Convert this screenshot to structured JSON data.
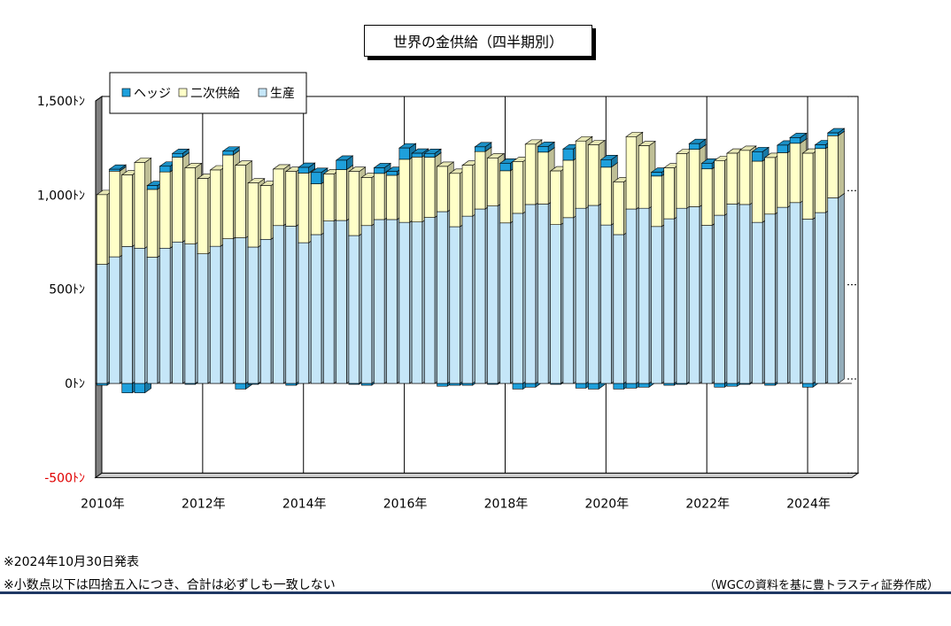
{
  "title": "世界の金供給（四半期別）",
  "notes": {
    "release": "※2024年10月30日発表",
    "rounding": "※小数点以下は四捨五入につき、合計は必ずしも一致しない",
    "source": "（WGCの資料を基に豊トラスティ証券作成）"
  },
  "colors": {
    "hedge": "#1ea0dc",
    "secondary": "#ffffc8",
    "production": "#c5e6f8"
  },
  "chart_data": {
    "type": "bar",
    "stacked": true,
    "style": "3d",
    "ylim": [
      -500,
      1500
    ],
    "y_ticks": [
      {
        "value": 1500,
        "label": "1,500ﾄﾝ"
      },
      {
        "value": 1000,
        "label": "1,000ﾄﾝ"
      },
      {
        "value": 500,
        "label": "500ﾄﾝ"
      },
      {
        "value": 0,
        "label": "0ﾄﾝ"
      },
      {
        "value": -500,
        "label": "-500ﾄﾝ"
      }
    ],
    "x_tick_labels": [
      "2010年",
      "2012年",
      "2014年",
      "2016年",
      "2018年",
      "2020年",
      "2022年",
      "2024年"
    ],
    "legend": {
      "placement": "top-left",
      "items": [
        "ヘッジ",
        "二次供給",
        "生産"
      ]
    },
    "categories": [
      "2010 Q1",
      "2010 Q2",
      "2010 Q3",
      "2010 Q4",
      "2011 Q1",
      "2011 Q2",
      "2011 Q3",
      "2011 Q4",
      "2012 Q1",
      "2012 Q2",
      "2012 Q3",
      "2012 Q4",
      "2013 Q1",
      "2013 Q2",
      "2013 Q3",
      "2013 Q4",
      "2014 Q1",
      "2014 Q2",
      "2014 Q3",
      "2014 Q4",
      "2015 Q1",
      "2015 Q2",
      "2015 Q3",
      "2015 Q4",
      "2016 Q1",
      "2016 Q2",
      "2016 Q3",
      "2016 Q4",
      "2017 Q1",
      "2017 Q2",
      "2017 Q3",
      "2017 Q4",
      "2018 Q1",
      "2018 Q2",
      "2018 Q3",
      "2018 Q4",
      "2019 Q1",
      "2019 Q2",
      "2019 Q3",
      "2019 Q4",
      "2020 Q1",
      "2020 Q2",
      "2020 Q3",
      "2020 Q4",
      "2021 Q1",
      "2021 Q2",
      "2021 Q3",
      "2021 Q4",
      "2022 Q1",
      "2022 Q2",
      "2022 Q3",
      "2022 Q4",
      "2023 Q1",
      "2023 Q2",
      "2023 Q3",
      "2023 Q4",
      "2024 Q1",
      "2024 Q2",
      "2024 Q3"
    ],
    "series": [
      {
        "name": "生産",
        "key": "production",
        "values": [
          632,
          672,
          727,
          718,
          670,
          718,
          751,
          740,
          688,
          728,
          768,
          773,
          724,
          765,
          838,
          835,
          747,
          790,
          862,
          865,
          785,
          838,
          870,
          870,
          855,
          857,
          881,
          912,
          832,
          888,
          926,
          942,
          852,
          903,
          950,
          952,
          843,
          880,
          930,
          945,
          841,
          790,
          926,
          930,
          833,
          874,
          930,
          938,
          839,
          893,
          952,
          950,
          855,
          899,
          935,
          960,
          872,
          907,
          985
        ]
      },
      {
        "name": "二次供給",
        "key": "secondary",
        "values": [
          370,
          455,
          380,
          455,
          360,
          405,
          450,
          405,
          400,
          405,
          445,
          385,
          340,
          285,
          300,
          290,
          370,
          270,
          250,
          270,
          340,
          255,
          245,
          235,
          335,
          345,
          320,
          240,
          283,
          270,
          305,
          255,
          277,
          275,
          320,
          276,
          285,
          305,
          357,
          322,
          307,
          280,
          384,
          332,
          268,
          270,
          290,
          305,
          300,
          290,
          270,
          287,
          325,
          300,
          290,
          315,
          350,
          340,
          330
        ]
      },
      {
        "name": "ヘッジ",
        "key": "hedge",
        "values": [
          -10,
          10,
          -50,
          -50,
          20,
          30,
          20,
          -5,
          0,
          0,
          20,
          -30,
          -5,
          0,
          0,
          -10,
          30,
          60,
          0,
          50,
          -5,
          -10,
          30,
          20,
          60,
          20,
          20,
          -15,
          -10,
          -10,
          25,
          -5,
          40,
          -30,
          -20,
          30,
          -5,
          60,
          -25,
          -30,
          40,
          -30,
          -25,
          -20,
          20,
          -10,
          -5,
          30,
          30,
          -20,
          -15,
          -5,
          50,
          -10,
          40,
          30,
          -20,
          20,
          15
        ]
      }
    ]
  }
}
